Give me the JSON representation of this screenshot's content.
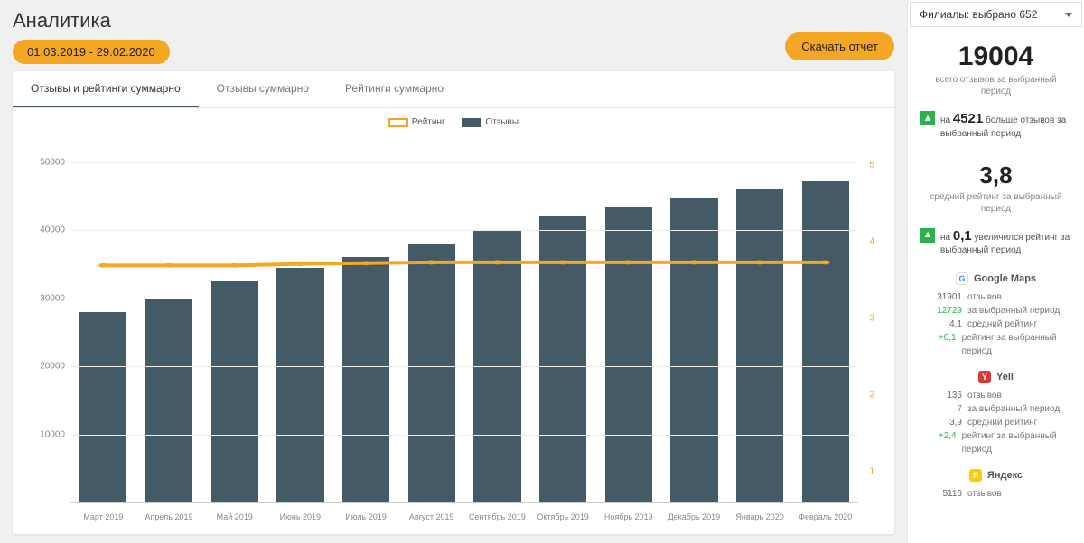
{
  "page": {
    "title": "Аналитика",
    "date_range": "01.03.2019 - 29.02.2020",
    "download_label": "Скачать отчет"
  },
  "filter": {
    "label": "Филиалы: выбрано 652"
  },
  "tabs": [
    {
      "label": "Отзывы и рейтинги суммарно",
      "active": true
    },
    {
      "label": "Отзывы суммарно",
      "active": false
    },
    {
      "label": "Рейтинги суммарно",
      "active": false
    }
  ],
  "chart": {
    "type": "bar+line",
    "legend": {
      "line_label": "Рейтинг",
      "bar_label": "Отзывы"
    },
    "bar_color": "#445a66",
    "line_color": "#f5a623",
    "grid_color": "#eeeeee",
    "background_color": "#ffffff",
    "y_left": {
      "min": 0,
      "max": 50000,
      "ticks": [
        10000,
        20000,
        30000,
        40000,
        50000
      ],
      "extent": 54000
    },
    "y_right": {
      "min": 1,
      "max": 5,
      "ticks": [
        1,
        2,
        3,
        4,
        5
      ],
      "extent_min": 0.6,
      "extent_max": 5.4
    },
    "categories": [
      "Март 2019",
      "Апрель 2019",
      "Май 2019",
      "Июнь 2019",
      "Июль 2019",
      "Август 2019",
      "Сентябрь 2019",
      "Октябрь 2019",
      "Ноябрь 2019",
      "Декабрь 2019",
      "Январь 2020",
      "Февраль 2020"
    ],
    "bar_values": [
      28000,
      30000,
      32500,
      34500,
      36000,
      38000,
      40000,
      42000,
      43500,
      44700,
      46000,
      47200
    ],
    "line_values": [
      3.7,
      3.7,
      3.7,
      3.72,
      3.73,
      3.74,
      3.74,
      3.74,
      3.74,
      3.74,
      3.74,
      3.74
    ]
  },
  "summary": {
    "total_reviews": "19004",
    "total_caption": "всего отзывов за выбранный период",
    "delta_reviews_prefix": "на",
    "delta_reviews_num": "4521",
    "delta_reviews_suffix": "больше отзывов за выбранный период",
    "avg_rating": "3,8",
    "avg_caption": "средний рейтинг за выбранный период",
    "delta_rating_prefix": "на",
    "delta_rating_num": "0,1",
    "delta_rating_suffix": "увеличился рейтинг за выбранный период"
  },
  "sources": [
    {
      "name": "Google Maps",
      "icon_letter": "G",
      "icon_bg": "#ffffff",
      "icon_border": "#e0e0e0",
      "rows": [
        {
          "num": "31901",
          "label": "отзывов",
          "green": false
        },
        {
          "num": "12729",
          "label": "за выбранный период",
          "green": true
        },
        {
          "num": "4,1",
          "label": "средний рейтинг",
          "green": false
        },
        {
          "num": "+0,1",
          "label": "рейтинг за выбранный период",
          "green": true
        }
      ]
    },
    {
      "name": "Yell",
      "icon_letter": "Y",
      "icon_bg": "#d43a3a",
      "rows": [
        {
          "num": "136",
          "label": "отзывов",
          "green": false
        },
        {
          "num": "7",
          "label": "за выбранный период",
          "green": true
        },
        {
          "num": "3,9",
          "label": "средний рейтинг",
          "green": false
        },
        {
          "num": "+2,4",
          "label": "рейтинг за выбранный период",
          "green": true
        }
      ]
    },
    {
      "name": "Яндекс",
      "icon_letter": "Я",
      "icon_bg": "#ffcc00",
      "rows": [
        {
          "num": "5116",
          "label": "отзывов",
          "green": false
        }
      ]
    }
  ]
}
